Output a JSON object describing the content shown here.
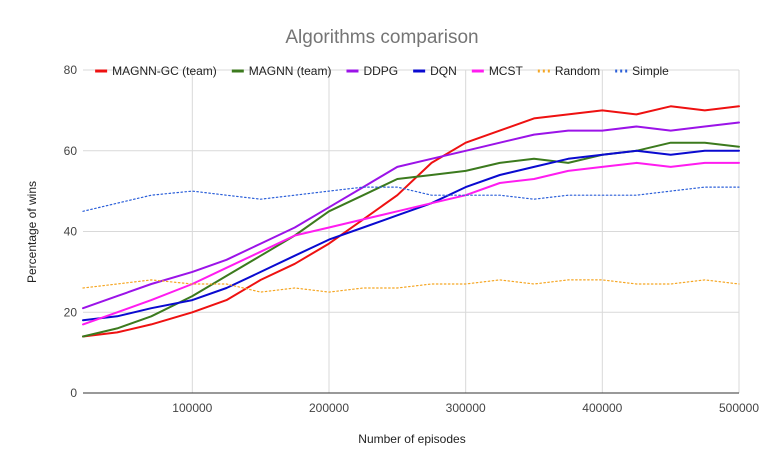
{
  "chart_data": {
    "type": "line",
    "title": "Algorithms comparison",
    "xlabel": "Number of episodes",
    "ylabel": "Percentage of wins",
    "xlim": [
      20000,
      500000
    ],
    "ylim": [
      0,
      80
    ],
    "xticks": [
      100000,
      200000,
      300000,
      400000,
      500000
    ],
    "xtick_labels": [
      "100000",
      "200000",
      "300000",
      "400000",
      "500000"
    ],
    "yticks": [
      0,
      20,
      40,
      60,
      80
    ],
    "ytick_labels": [
      "0",
      "20",
      "40",
      "60",
      "80"
    ],
    "grid": true,
    "legend_position": "top",
    "x": [
      20000,
      45000,
      70000,
      100000,
      125000,
      150000,
      175000,
      200000,
      225000,
      250000,
      275000,
      300000,
      325000,
      350000,
      375000,
      400000,
      425000,
      450000,
      475000,
      500000
    ],
    "series": [
      {
        "name": "MAGNN-GC (team)",
        "color": "#ee1111",
        "style": "solid",
        "values": [
          14,
          15,
          17,
          20,
          23,
          28,
          32,
          37,
          43,
          49,
          57,
          62,
          65,
          68,
          69,
          70,
          69,
          71,
          70,
          71
        ]
      },
      {
        "name": "MAGNN (team)",
        "color": "#3c7a1e",
        "style": "solid",
        "values": [
          14,
          16,
          19,
          24,
          29,
          34,
          39,
          45,
          49,
          53,
          54,
          55,
          57,
          58,
          57,
          59,
          60,
          62,
          62,
          61
        ]
      },
      {
        "name": "DDPG",
        "color": "#9b13e8",
        "style": "solid",
        "values": [
          21,
          24,
          27,
          30,
          33,
          37,
          41,
          46,
          51,
          56,
          58,
          60,
          62,
          64,
          65,
          65,
          66,
          65,
          66,
          67
        ]
      },
      {
        "name": "DQN",
        "color": "#0a0ad0",
        "style": "solid",
        "values": [
          18,
          19,
          21,
          23,
          26,
          30,
          34,
          38,
          41,
          44,
          47,
          51,
          54,
          56,
          58,
          59,
          60,
          59,
          60,
          60
        ]
      },
      {
        "name": "MCST",
        "color": "#ff1cf0",
        "style": "solid",
        "values": [
          17,
          20,
          23,
          27,
          31,
          35,
          39,
          41,
          43,
          45,
          47,
          49,
          52,
          53,
          55,
          56,
          57,
          56,
          57,
          57
        ]
      },
      {
        "name": "Random",
        "color": "#f5a623",
        "style": "dotted",
        "values": [
          26,
          27,
          28,
          27,
          27,
          25,
          26,
          25,
          26,
          26,
          27,
          27,
          28,
          27,
          28,
          28,
          27,
          27,
          28,
          27
        ]
      },
      {
        "name": "Simple",
        "color": "#2b5fd9",
        "style": "dotted",
        "values": [
          45,
          47,
          49,
          50,
          49,
          48,
          49,
          50,
          51,
          51,
          49,
          49,
          49,
          48,
          49,
          49,
          49,
          50,
          51,
          51
        ]
      }
    ]
  }
}
